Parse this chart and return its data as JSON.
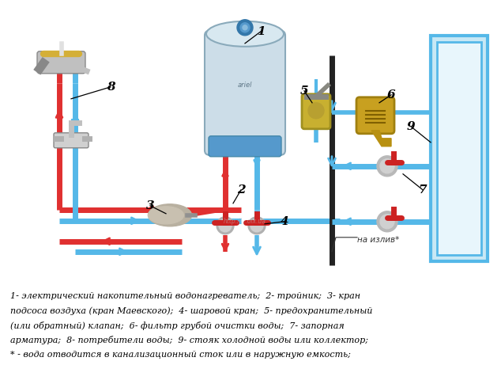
{
  "bg_color": "#ffffff",
  "caption_lines": [
    "1- электрический накопительный водонагреватель;  2- тройник;  3- кран",
    "подсоса воздуха (кран Маевского);  4- шаровой кран;  5- предохранительный",
    "(или обратный) клапан;  6- фильтр грубой очистки воды;  7- запорная",
    "арматура;  8- потребители воды;  9- стояк холодной воды или коллектор;",
    "* - вода отводится в канализационный сток или в наружную емкость;"
  ],
  "annotation_na_izliv": "на излив*",
  "cold_color": "#55b8e8",
  "hot_color": "#e03030",
  "cold_dark": "#2288bb",
  "hot_dark": "#bb1111",
  "pipe_lw": 5,
  "fig_width": 6.34,
  "fig_height": 4.61,
  "dpi": 100
}
